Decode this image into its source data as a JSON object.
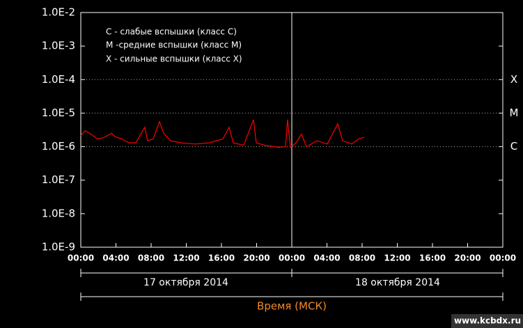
{
  "chart_data": {
    "type": "line",
    "log_scale": true,
    "legend": [
      "C - слабые вспышки (класс C)",
      "M -средние вспышки (класс M)",
      "X - сильные вспышки (класс X)"
    ],
    "x": [
      0,
      0.48,
      1.11,
      1.9,
      2.69,
      3.49,
      3.88,
      4.67,
      5.47,
      6.26,
      7.29,
      7.6,
      8.24,
      8.95,
      9.43,
      10.22,
      11.41,
      13.0,
      14.57,
      16.16,
      16.87,
      17.35,
      18.53,
      19.64,
      19.96,
      20.91,
      22.5,
      23.29,
      23.52,
      23.84,
      24.48,
      25.11,
      25.66,
      26.85,
      28.04,
      29.23,
      29.78,
      30.81,
      31.6,
      32.24
    ],
    "series": [
      {
        "color": "#ff0000",
        "values": [
          2.1e-06,
          3e-06,
          2.4e-06,
          1.7e-06,
          1.9e-06,
          2.5e-06,
          2e-06,
          1.7e-06,
          1.3e-06,
          1.3e-06,
          3.8e-06,
          1.5e-06,
          1.7e-06,
          5.6e-06,
          2.5e-06,
          1.5e-06,
          1.3e-06,
          1.2e-06,
          1.3e-06,
          1.7e-06,
          3.8e-06,
          1.3e-06,
          1.1e-06,
          6.4e-06,
          1.3e-06,
          1.1e-06,
          9.5e-07,
          1e-06,
          6.4e-06,
          9.5e-07,
          1.3e-06,
          2.4e-06,
          1e-06,
          1.5e-06,
          1.2e-06,
          4.8e-06,
          1.5e-06,
          1.2e-06,
          1.7e-06,
          1.9e-06
        ]
      }
    ],
    "xlim": [
      0,
      48
    ],
    "xticks": [
      {
        "value": 0,
        "label": "00:00"
      },
      {
        "value": 4,
        "label": "04:00"
      },
      {
        "value": 8,
        "label": "08:00"
      },
      {
        "value": 12,
        "label": "12:00"
      },
      {
        "value": 16,
        "label": "16:00"
      },
      {
        "value": 20,
        "label": "20:00"
      },
      {
        "value": 24,
        "label": "00:00"
      },
      {
        "value": 28,
        "label": "04:00"
      },
      {
        "value": 32,
        "label": "08:00"
      },
      {
        "value": 36,
        "label": "12:00"
      },
      {
        "value": 40,
        "label": "16:00"
      },
      {
        "value": 44,
        "label": "20:00"
      },
      {
        "value": 48,
        "label": "00:00"
      }
    ],
    "ylim": [
      1e-09,
      0.01
    ],
    "yticks": [
      {
        "value": 0.01,
        "label": "1.0E-2"
      },
      {
        "value": 0.001,
        "label": "1.0E-3"
      },
      {
        "value": 0.0001,
        "label": "1.0E-4"
      },
      {
        "value": 1e-05,
        "label": "1.0E-5"
      },
      {
        "value": 1e-06,
        "label": "1.0E-6"
      },
      {
        "value": 1e-07,
        "label": "1.0E-7"
      },
      {
        "value": 1e-08,
        "label": "1.0E-8"
      },
      {
        "value": 1e-09,
        "label": "1.0E-9"
      }
    ],
    "levels": [
      {
        "value": 0.0001,
        "label": "X"
      },
      {
        "value": 1e-05,
        "label": "M"
      },
      {
        "value": 1e-06,
        "label": "C"
      }
    ],
    "day_boundary": 24,
    "date_labels": [
      "17 октября 2014",
      "18 октября 2014"
    ],
    "x_label": "Время (МСК)",
    "watermark": "www.kcbdx.ru"
  }
}
